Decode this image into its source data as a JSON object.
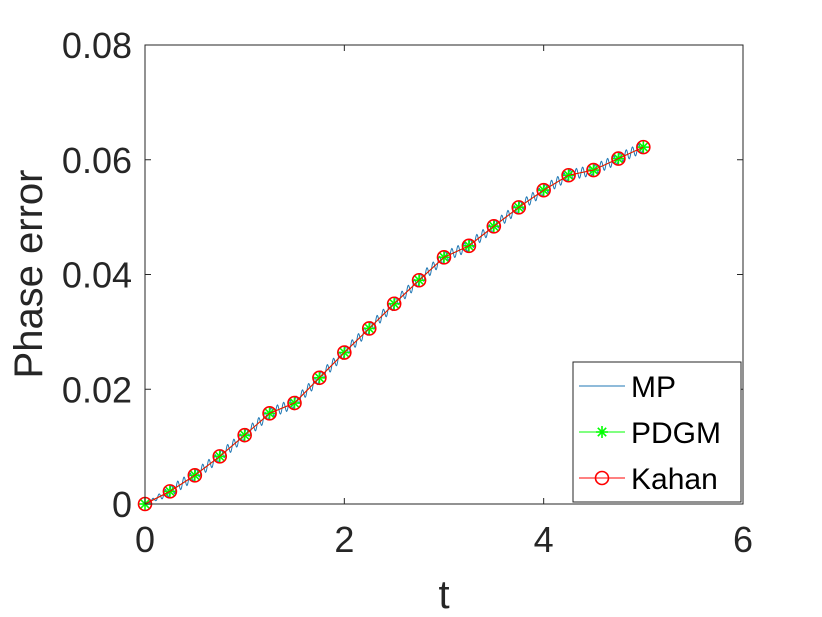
{
  "chart_data": {
    "type": "line",
    "xlabel": "t",
    "ylabel": "Phase error",
    "xlim": [
      0,
      6
    ],
    "ylim": [
      0,
      0.08
    ],
    "x_ticks": [
      0,
      2,
      4,
      6
    ],
    "x_tick_labels": [
      "0",
      "2",
      "4",
      "6"
    ],
    "y_ticks": [
      0,
      0.02,
      0.04,
      0.06,
      0.08
    ],
    "y_tick_labels": [
      "0",
      "0.02",
      "0.04",
      "0.06",
      "0.08"
    ],
    "grid": false,
    "legend_position": "bottom-right",
    "x": [
      0,
      0.25,
      0.5,
      0.75,
      1.0,
      1.25,
      1.5,
      1.75,
      2.0,
      2.25,
      2.5,
      2.75,
      3.0,
      3.25,
      3.5,
      3.75,
      4.0,
      4.25,
      4.5,
      4.75,
      5.0
    ],
    "series": [
      {
        "name": "MP",
        "color": "#1f77b4",
        "marker": "none",
        "oscillating": true,
        "values": [
          0,
          0.0022,
          0.005,
          0.0083,
          0.012,
          0.0158,
          0.0176,
          0.022,
          0.0264,
          0.0306,
          0.0349,
          0.039,
          0.043,
          0.045,
          0.0484,
          0.0517,
          0.0547,
          0.0573,
          0.0582,
          0.0602,
          0.0622
        ]
      },
      {
        "name": "PDGM",
        "color": "#00ff00",
        "marker": "asterisk",
        "values": [
          0,
          0.0022,
          0.005,
          0.0083,
          0.012,
          0.0158,
          0.0176,
          0.022,
          0.0264,
          0.0306,
          0.0349,
          0.039,
          0.043,
          0.045,
          0.0484,
          0.0517,
          0.0547,
          0.0573,
          0.0582,
          0.0602,
          0.0622
        ]
      },
      {
        "name": "Kahan",
        "color": "#ff0000",
        "marker": "circle",
        "values": [
          0,
          0.0022,
          0.005,
          0.0083,
          0.012,
          0.0158,
          0.0176,
          0.022,
          0.0264,
          0.0306,
          0.0349,
          0.039,
          0.043,
          0.045,
          0.0484,
          0.0517,
          0.0547,
          0.0573,
          0.0582,
          0.0602,
          0.0622
        ]
      }
    ]
  }
}
